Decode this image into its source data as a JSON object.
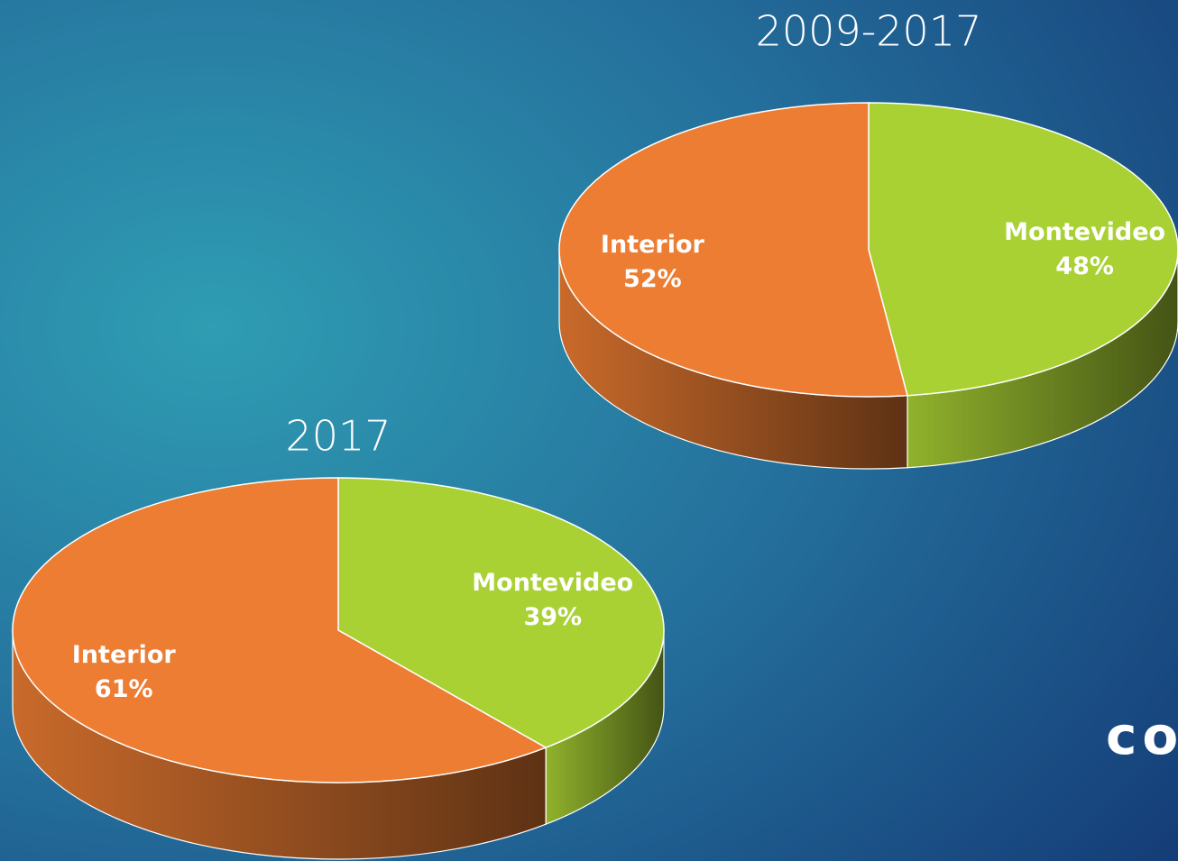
{
  "chart_data": [
    {
      "type": "pie",
      "title": "2009-2017",
      "categories": [
        "Montevideo",
        "Interior"
      ],
      "values": [
        48,
        52
      ],
      "value_labels": [
        "48%",
        "52%"
      ],
      "colors": [
        "#a9d134",
        "#ec7d32"
      ]
    },
    {
      "type": "pie",
      "title": "2017",
      "categories": [
        "Montevideo",
        "Interior"
      ],
      "values": [
        39,
        61
      ],
      "value_labels": [
        "39%",
        "61%"
      ],
      "colors": [
        "#a9d134",
        "#ec7d32"
      ]
    }
  ],
  "slide_text": "co"
}
